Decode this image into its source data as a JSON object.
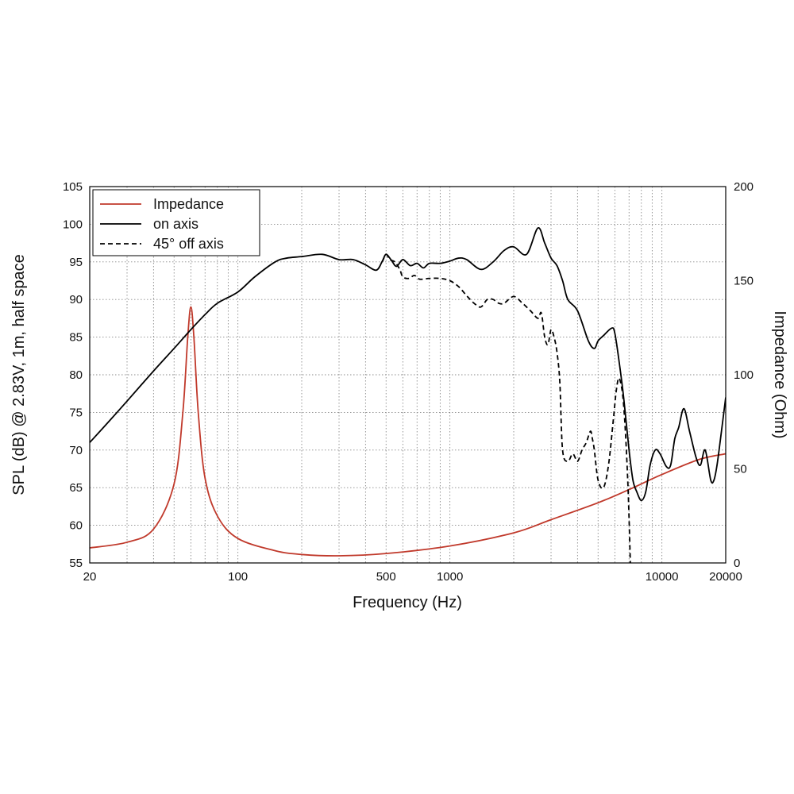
{
  "chart_data": {
    "type": "line",
    "xlabel": "Frequency (Hz)",
    "ylabel_left": "SPL (dB) @ 2.83V, 1m, half space",
    "ylabel_right": "Impedance (Ohm)",
    "x_scale": "log",
    "xlim": [
      20,
      20000
    ],
    "ylim_left": [
      55,
      105
    ],
    "ylim_right": [
      0,
      200
    ],
    "x_ticks": [
      {
        "value": 20,
        "label": "20"
      },
      {
        "value": 100,
        "label": "100"
      },
      {
        "value": 500,
        "label": "500"
      },
      {
        "value": 1000,
        "label": "1000"
      },
      {
        "value": 10000,
        "label": "10000"
      },
      {
        "value": 20000,
        "label": "20000"
      }
    ],
    "y_ticks_left": [
      "55",
      "60",
      "65",
      "70",
      "75",
      "80",
      "85",
      "90",
      "95",
      "100",
      "105"
    ],
    "y_ticks_right": [
      "0",
      "50",
      "100",
      "150",
      "200"
    ],
    "grid": true,
    "legend_position": "top-left",
    "series": [
      {
        "name": "Impedance",
        "axis": "right",
        "color": "#c0392b",
        "style": "solid",
        "x": [
          20,
          30,
          40,
          50,
          55,
          58,
          60,
          62,
          65,
          70,
          80,
          100,
          150,
          200,
          300,
          500,
          1000,
          2000,
          3000,
          5000,
          7000,
          10000,
          15000,
          20000
        ],
        "y": [
          8,
          11,
          18,
          42,
          80,
          120,
          136,
          120,
          80,
          45,
          25,
          13,
          6.5,
          4.5,
          3.8,
          5,
          9,
          16,
          23,
          32,
          39,
          47,
          55,
          58
        ]
      },
      {
        "name": "on axis",
        "axis": "left",
        "color": "#000000",
        "style": "solid",
        "x": [
          20,
          25,
          30,
          40,
          50,
          60,
          70,
          80,
          100,
          120,
          150,
          170,
          200,
          250,
          300,
          350,
          400,
          450,
          480,
          500,
          530,
          560,
          600,
          650,
          700,
          750,
          800,
          900,
          1000,
          1100,
          1200,
          1400,
          1600,
          1800,
          2000,
          2300,
          2600,
          2800,
          3000,
          3200,
          3400,
          3600,
          4000,
          4500,
          4800,
          5000,
          5300,
          5800,
          6000,
          6300,
          6600,
          7000,
          7300,
          7600,
          8000,
          8400,
          8800,
          9300,
          9800,
          10500,
          11000,
          11500,
          12000,
          12700,
          13500,
          14500,
          15200,
          16000,
          17000,
          17600,
          18200,
          19000,
          20000
        ],
        "y": [
          71,
          74,
          76.5,
          80.5,
          83.5,
          86,
          88,
          89.5,
          91,
          93,
          95,
          95.5,
          95.7,
          96,
          95.3,
          95.3,
          94.6,
          93.9,
          95.1,
          96,
          95.2,
          94.4,
          95.3,
          94.5,
          94.8,
          94.2,
          94.8,
          94.8,
          95.1,
          95.5,
          95.3,
          94,
          95,
          96.5,
          97,
          96,
          99.5,
          97.5,
          95.5,
          94.5,
          92.5,
          90,
          88.5,
          84.5,
          83.5,
          84.5,
          85.2,
          86.2,
          85.5,
          81.5,
          77,
          70,
          66,
          64.5,
          63.3,
          64.5,
          68,
          70,
          69.5,
          67.8,
          68,
          71.5,
          73,
          75.5,
          72.5,
          69,
          68,
          70,
          66,
          66,
          68,
          72,
          77
        ]
      },
      {
        "name": "45° off axis",
        "axis": "left",
        "color": "#000000",
        "style": "dashed",
        "x": [
          480,
          500,
          520,
          550,
          580,
          600,
          640,
          680,
          720,
          800,
          900,
          1000,
          1100,
          1200,
          1300,
          1400,
          1500,
          1600,
          1700,
          1800,
          2000,
          2200,
          2400,
          2600,
          2700,
          2800,
          2900,
          3000,
          3100,
          3200,
          3300,
          3400,
          3600,
          3800,
          4000,
          4200,
          4400,
          4600,
          4700,
          4800,
          5000,
          5300,
          5600,
          5900,
          6100,
          6300,
          6600,
          6900,
          7100
        ],
        "y": [
          95,
          96,
          95.3,
          95,
          94,
          93,
          92.8,
          93.2,
          92.7,
          92.8,
          92.8,
          92.5,
          91.7,
          90.5,
          89.5,
          89,
          90,
          90,
          89.5,
          89.5,
          90.4,
          89.5,
          88.5,
          87.5,
          88.2,
          85,
          84,
          86,
          85,
          83,
          79,
          70,
          68.5,
          69.5,
          68.5,
          70,
          71,
          72.5,
          71.5,
          70,
          66,
          65,
          68,
          74,
          78,
          79.5,
          76,
          66,
          55
        ]
      }
    ]
  }
}
